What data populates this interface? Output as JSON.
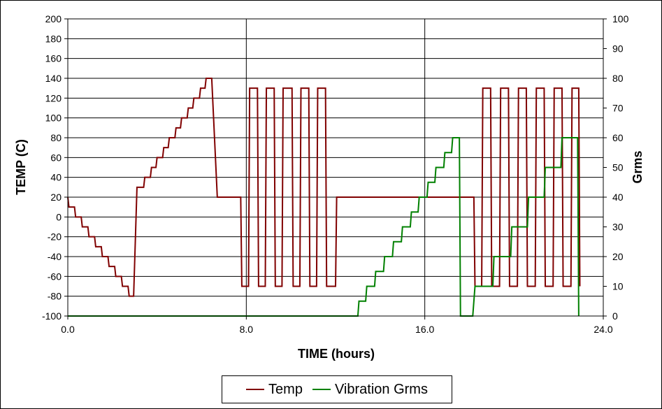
{
  "chart_data": {
    "type": "line",
    "xlabel": "TIME (hours)",
    "ylabel": "TEMP (C)",
    "y2label": "Grms",
    "xlim": [
      0,
      24
    ],
    "ylim": [
      -100,
      200
    ],
    "y2lim": [
      0,
      100
    ],
    "x_ticks": [
      "0.0",
      "8.0",
      "16.0",
      "24.0"
    ],
    "x_tick_values": [
      0,
      8,
      16,
      24
    ],
    "y_ticks": [
      "200",
      "180",
      "160",
      "140",
      "120",
      "100",
      "80",
      "60",
      "40",
      "20",
      "0",
      "-20",
      "-40",
      "-60",
      "-80",
      "-100"
    ],
    "y_tick_values": [
      200,
      180,
      160,
      140,
      120,
      100,
      80,
      60,
      40,
      20,
      0,
      -20,
      -40,
      -60,
      -80,
      -100
    ],
    "y2_ticks": [
      "100",
      "90",
      "80",
      "70",
      "60",
      "50",
      "40",
      "30",
      "20",
      "10",
      "0"
    ],
    "y2_tick_values": [
      100,
      90,
      80,
      70,
      60,
      50,
      40,
      30,
      20,
      10,
      0
    ],
    "grid": "horizontal lines at each left-axis tick; vertical lines at x ticks",
    "legend_position": "bottom-center",
    "series": [
      {
        "name": "Temp",
        "axis": "left",
        "color": "#800000",
        "points": [
          [
            0,
            20
          ],
          [
            0.05,
            10
          ],
          [
            0.3,
            10
          ],
          [
            0.35,
            0
          ],
          [
            0.6,
            0
          ],
          [
            0.65,
            -10
          ],
          [
            0.9,
            -10
          ],
          [
            0.95,
            -20
          ],
          [
            1.2,
            -20
          ],
          [
            1.25,
            -30
          ],
          [
            1.5,
            -30
          ],
          [
            1.55,
            -40
          ],
          [
            1.8,
            -40
          ],
          [
            1.85,
            -50
          ],
          [
            2.1,
            -50
          ],
          [
            2.15,
            -60
          ],
          [
            2.4,
            -60
          ],
          [
            2.45,
            -70
          ],
          [
            2.7,
            -70
          ],
          [
            2.75,
            -80
          ],
          [
            2.95,
            -80
          ],
          [
            3.1,
            30
          ],
          [
            3.4,
            30
          ],
          [
            3.45,
            40
          ],
          [
            3.7,
            40
          ],
          [
            3.75,
            50
          ],
          [
            3.95,
            50
          ],
          [
            4.0,
            60
          ],
          [
            4.25,
            60
          ],
          [
            4.3,
            70
          ],
          [
            4.5,
            70
          ],
          [
            4.55,
            80
          ],
          [
            4.8,
            80
          ],
          [
            4.85,
            90
          ],
          [
            5.05,
            90
          ],
          [
            5.1,
            100
          ],
          [
            5.35,
            100
          ],
          [
            5.4,
            110
          ],
          [
            5.6,
            110
          ],
          [
            5.65,
            120
          ],
          [
            5.9,
            120
          ],
          [
            5.95,
            130
          ],
          [
            6.15,
            130
          ],
          [
            6.2,
            140
          ],
          [
            6.45,
            140
          ],
          [
            6.7,
            20
          ],
          [
            7.75,
            20
          ],
          [
            7.8,
            -70
          ],
          [
            8.1,
            -70
          ],
          [
            8.15,
            130
          ],
          [
            8.5,
            130
          ],
          [
            8.55,
            -70
          ],
          [
            8.85,
            -70
          ],
          [
            8.9,
            130
          ],
          [
            9.25,
            130
          ],
          [
            9.3,
            -70
          ],
          [
            9.6,
            -70
          ],
          [
            9.65,
            130
          ],
          [
            10.05,
            130
          ],
          [
            10.1,
            -70
          ],
          [
            10.4,
            -70
          ],
          [
            10.45,
            130
          ],
          [
            10.8,
            130
          ],
          [
            10.85,
            -70
          ],
          [
            11.15,
            -70
          ],
          [
            11.2,
            130
          ],
          [
            11.55,
            130
          ],
          [
            11.6,
            -70
          ],
          [
            12.0,
            -70
          ],
          [
            12.05,
            20
          ],
          [
            18.2,
            20
          ],
          [
            18.25,
            -70
          ],
          [
            18.55,
            -70
          ],
          [
            18.6,
            130
          ],
          [
            18.95,
            130
          ],
          [
            19.0,
            -70
          ],
          [
            19.35,
            -70
          ],
          [
            19.4,
            130
          ],
          [
            19.75,
            130
          ],
          [
            19.8,
            -70
          ],
          [
            20.15,
            -70
          ],
          [
            20.2,
            130
          ],
          [
            20.55,
            130
          ],
          [
            20.6,
            -70
          ],
          [
            20.95,
            -70
          ],
          [
            21.0,
            130
          ],
          [
            21.35,
            130
          ],
          [
            21.4,
            -70
          ],
          [
            21.75,
            -70
          ],
          [
            21.8,
            130
          ],
          [
            22.15,
            130
          ],
          [
            22.2,
            -70
          ],
          [
            22.55,
            -70
          ],
          [
            22.6,
            130
          ],
          [
            22.9,
            130
          ],
          [
            22.95,
            -70
          ]
        ]
      },
      {
        "name": "Vibration Grms",
        "axis": "right",
        "color": "#008000",
        "points": [
          [
            0,
            0
          ],
          [
            13.0,
            0
          ],
          [
            13.05,
            5
          ],
          [
            13.35,
            5
          ],
          [
            13.4,
            10
          ],
          [
            13.75,
            10
          ],
          [
            13.8,
            15
          ],
          [
            14.15,
            15
          ],
          [
            14.2,
            20
          ],
          [
            14.55,
            20
          ],
          [
            14.6,
            25
          ],
          [
            14.95,
            25
          ],
          [
            15.0,
            30
          ],
          [
            15.35,
            30
          ],
          [
            15.4,
            35
          ],
          [
            15.7,
            35
          ],
          [
            15.75,
            40
          ],
          [
            16.1,
            40
          ],
          [
            16.15,
            45
          ],
          [
            16.45,
            45
          ],
          [
            16.5,
            50
          ],
          [
            16.85,
            50
          ],
          [
            16.9,
            55
          ],
          [
            17.2,
            55
          ],
          [
            17.25,
            60
          ],
          [
            17.55,
            60
          ],
          [
            17.6,
            0
          ],
          [
            18.15,
            0
          ],
          [
            18.25,
            10
          ],
          [
            19.05,
            10
          ],
          [
            19.1,
            20
          ],
          [
            19.85,
            20
          ],
          [
            19.9,
            30
          ],
          [
            20.6,
            30
          ],
          [
            20.65,
            40
          ],
          [
            21.35,
            40
          ],
          [
            21.4,
            50
          ],
          [
            22.1,
            50
          ],
          [
            22.15,
            60
          ],
          [
            22.85,
            60
          ],
          [
            22.9,
            0
          ]
        ]
      }
    ]
  }
}
